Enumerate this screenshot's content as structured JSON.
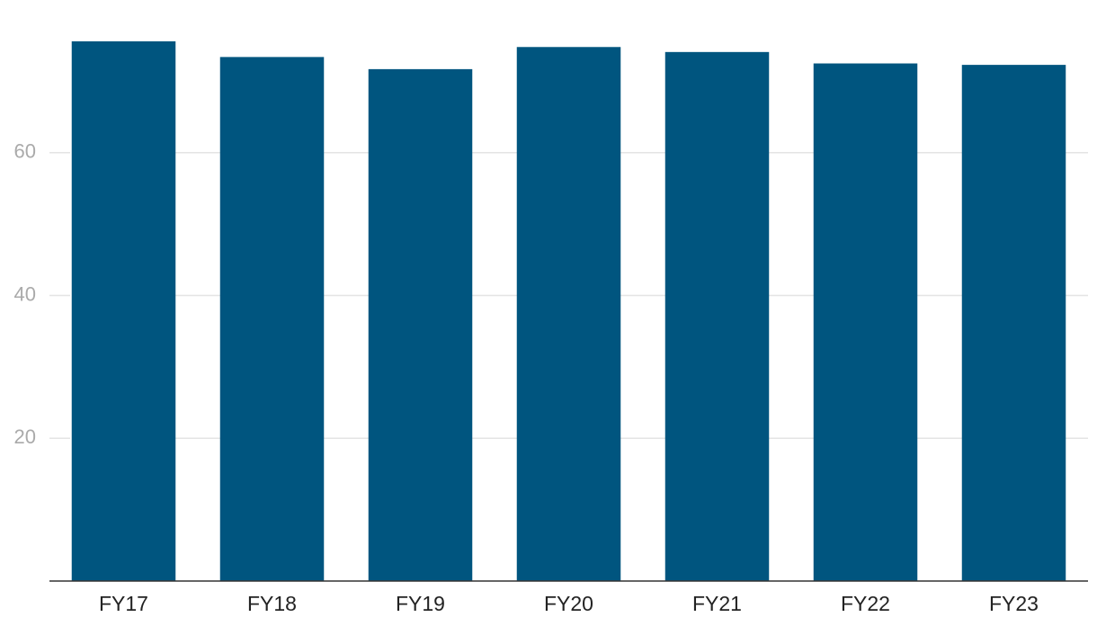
{
  "chart_data": {
    "type": "bar",
    "categories": [
      "FY17",
      "FY18",
      "FY19",
      "FY20",
      "FY21",
      "FY22",
      "FY23"
    ],
    "values": [
      75.6,
      73.4,
      71.7,
      74.8,
      74.1,
      72.5,
      72.3
    ],
    "color": "#00557f",
    "ylim": [
      0,
      80
    ],
    "yticks": [
      20,
      40,
      60
    ],
    "grid": true
  }
}
